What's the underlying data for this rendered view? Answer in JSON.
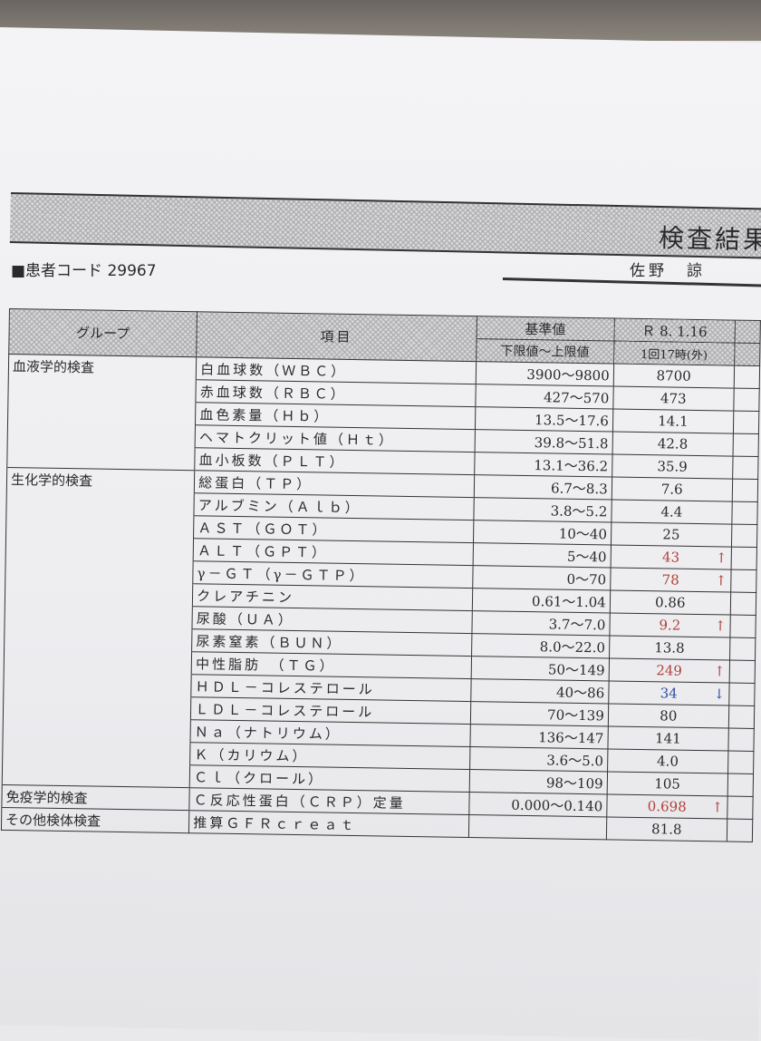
{
  "header": {
    "title": "検査結果",
    "patient_code_label": "■患者コード",
    "patient_code": "29967",
    "patient_name": "佐野　諒"
  },
  "columns": {
    "group": "グループ",
    "item": "項目",
    "ref_top": "基準値",
    "ref_bottom": "下限値～上限値",
    "date_top": "Ｒ 8. 1.16",
    "date_bottom": "1回17時(外)"
  },
  "rows": [
    {
      "group": "血液学的検査",
      "item": "白血球数（ＷＢＣ）",
      "ref": "3900～9800",
      "value": "8700",
      "flag": ""
    },
    {
      "group": "",
      "item": "赤血球数（ＲＢＣ）",
      "ref": "427～570",
      "value": "473",
      "flag": ""
    },
    {
      "group": "",
      "item": "血色素量（Ｈｂ）",
      "ref": "13.5～17.6",
      "value": "14.1",
      "flag": ""
    },
    {
      "group": "",
      "item": "ヘマトクリット値（Ｈｔ）",
      "ref": "39.8～51.8",
      "value": "42.8",
      "flag": ""
    },
    {
      "group": "",
      "item": "血小板数（ＰＬＴ）",
      "ref": "13.1～36.2",
      "value": "35.9",
      "flag": ""
    },
    {
      "group": "生化学的検査",
      "item": "総蛋白（ＴＰ）",
      "ref": "6.7～8.3",
      "value": "7.6",
      "flag": ""
    },
    {
      "group": "",
      "item": "アルブミン（Ａｌｂ）",
      "ref": "3.8～5.2",
      "value": "4.4",
      "flag": ""
    },
    {
      "group": "",
      "item": "ＡＳＴ（ＧＯＴ）",
      "ref": "10～40",
      "value": "25",
      "flag": ""
    },
    {
      "group": "",
      "item": "ＡＬＴ（ＧＰＴ）",
      "ref": "5～40",
      "value": "43",
      "flag": "↑"
    },
    {
      "group": "",
      "item": "γ－ＧＴ（γ－ＧＴＰ）",
      "ref": "0～70",
      "value": "78",
      "flag": "↑"
    },
    {
      "group": "",
      "item": "クレアチニン",
      "ref": "0.61～1.04",
      "value": "0.86",
      "flag": ""
    },
    {
      "group": "",
      "item": "尿酸（ＵＡ）",
      "ref": "3.7～7.0",
      "value": "9.2",
      "flag": "↑"
    },
    {
      "group": "",
      "item": "尿素窒素（ＢＵＮ）",
      "ref": "8.0～22.0",
      "value": "13.8",
      "flag": ""
    },
    {
      "group": "",
      "item": "中性脂肪　（ＴＧ）",
      "ref": "50～149",
      "value": "249",
      "flag": "↑"
    },
    {
      "group": "",
      "item": "ＨＤＬ－コレステロール",
      "ref": "40～86",
      "value": "34",
      "flag": "↓"
    },
    {
      "group": "",
      "item": "ＬＤＬ－コレステロール",
      "ref": "70～139",
      "value": "80",
      "flag": ""
    },
    {
      "group": "",
      "item": "Ｎａ（ナトリウム）",
      "ref": "136～147",
      "value": "141",
      "flag": ""
    },
    {
      "group": "",
      "item": "Ｋ（カリウム）",
      "ref": "3.6～5.0",
      "value": "4.0",
      "flag": ""
    },
    {
      "group": "",
      "item": "Ｃｌ（クロール）",
      "ref": "98～109",
      "value": "105",
      "flag": ""
    },
    {
      "group": "免疫学的検査",
      "item": "Ｃ反応性蛋白（ＣＲＰ）定量",
      "ref": "0.000～0.140",
      "value": "0.698",
      "flag": "↑"
    },
    {
      "group": "その他検体検査",
      "item": "推算ＧＦＲｃｒｅａｔ",
      "ref": "",
      "value": "81.8",
      "flag": ""
    }
  ],
  "colors": {
    "high": "#b0403a",
    "low": "#3050a0"
  }
}
